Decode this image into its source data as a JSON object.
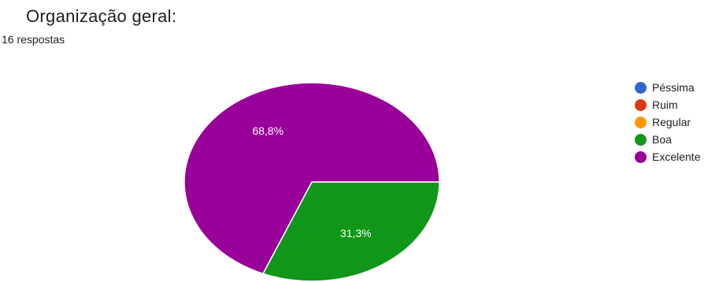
{
  "title": "Organização geral:",
  "subtitle": "16 respostas",
  "chart_data": {
    "type": "pie",
    "title": "Organização geral:",
    "subtitle": "16 respostas",
    "categories": [
      "Péssima",
      "Ruim",
      "Regular",
      "Boa",
      "Excelente"
    ],
    "values": [
      0,
      0,
      0,
      5,
      11
    ],
    "percent_labels": [
      "0%",
      "0%",
      "0%",
      "31,3%",
      "68,8%"
    ],
    "colors": [
      "#3366cc",
      "#dc3912",
      "#ff9900",
      "#109618",
      "#990099"
    ],
    "legend_position": "right",
    "legend": [
      {
        "label": "Péssima",
        "color": "#3366cc"
      },
      {
        "label": "Ruim",
        "color": "#dc3912"
      },
      {
        "label": "Regular",
        "color": "#ff9900"
      },
      {
        "label": "Boa",
        "color": "#109618"
      },
      {
        "label": "Excelente",
        "color": "#990099"
      }
    ]
  }
}
